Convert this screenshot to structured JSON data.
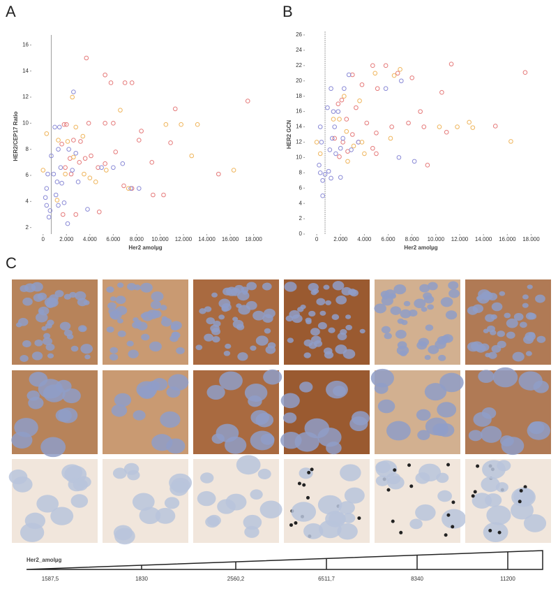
{
  "chart_data": [
    {
      "type": "scatter",
      "panel": "A",
      "x_label": "Her2 amolµg",
      "y_label": "HER2/CEP17 Ratio",
      "xlim": [
        -1000,
        18500
      ],
      "ylim": [
        1.5,
        16.5
      ],
      "xticks": [
        0,
        {
          "value": 2000,
          "label": "2.000"
        },
        {
          "value": 4000,
          "label": "4.000"
        },
        {
          "value": 6000,
          "label": "6.000"
        },
        {
          "value": 8000,
          "label": "8.000"
        },
        {
          "value": 10000,
          "label": "10.000"
        },
        {
          "value": 12000,
          "label": "12.000"
        },
        {
          "value": 14000,
          "label": "14.000"
        },
        {
          "value": 16000,
          "label": "16.000"
        },
        {
          "value": 18000,
          "label": "18.000"
        }
      ],
      "yticks": [
        2,
        4,
        6,
        8,
        10,
        12,
        14,
        16
      ],
      "ref_line_x": 700,
      "series": [
        {
          "color": "#e57a7a",
          "x": [
            3700,
            5300,
            5800,
            7000,
            7600,
            11300,
            17500,
            2000,
            1800,
            3900,
            5300,
            6000,
            8400,
            2600,
            3200,
            1600,
            4100,
            3600,
            2300,
            9300,
            1900,
            5300,
            4700,
            2400,
            8200,
            3100,
            6200,
            15000,
            10900,
            9400,
            10300,
            4800,
            1700,
            2800,
            7600,
            6900
          ],
          "values": [
            15,
            13.7,
            13.1,
            13.1,
            13.1,
            11.1,
            11.7,
            9.9,
            9.9,
            10,
            10,
            10,
            9.4,
            8.7,
            8.6,
            8.4,
            7.5,
            7.3,
            7.3,
            7,
            6.6,
            6.9,
            6.6,
            6.1,
            8.7,
            7,
            7.8,
            6.1,
            8.5,
            4.5,
            4.5,
            3.2,
            3,
            3,
            5,
            5.2
          ]
        },
        {
          "color": "#8a8ad6",
          "x": [
            300,
            400,
            200,
            300,
            500,
            600,
            1000,
            1400,
            2600,
            2200,
            1300,
            700,
            900,
            1500,
            2500,
            3000,
            1100,
            1300,
            1800,
            2100,
            1600,
            3800,
            5000,
            6000,
            6800,
            7500,
            8200,
            2800,
            1200
          ],
          "values": [
            5,
            6.1,
            4.3,
            3.7,
            2.8,
            3.3,
            9.7,
            9.7,
            12.4,
            8,
            8,
            7.5,
            6.1,
            6.6,
            6.4,
            5.5,
            4.5,
            3.7,
            3.9,
            2.3,
            5.4,
            3.4,
            6.6,
            6.6,
            6.9,
            5,
            5,
            7.7,
            5.5
          ]
        },
        {
          "color": "#efb55c",
          "x": [
            0,
            300,
            1300,
            2500,
            2800,
            3400,
            6600,
            10500,
            11800,
            13200,
            12700,
            16300,
            1900,
            2600,
            3500,
            4000,
            4500,
            7300,
            1200,
            2100,
            5400
          ],
          "values": [
            6.4,
            9.2,
            8.7,
            12,
            9.7,
            9,
            11,
            9.9,
            9.9,
            9.9,
            7.5,
            6.4,
            6.1,
            7.4,
            6.1,
            5.8,
            5.5,
            5,
            4.1,
            8.6,
            6.4
          ]
        }
      ]
    },
    {
      "type": "scatter",
      "panel": "B",
      "x_label": "Her2 amolµg",
      "y_label": "HER2 GCN",
      "xlim": [
        -1000,
        18500
      ],
      "ylim": [
        0,
        26
      ],
      "xticks": [
        0,
        {
          "value": 2000,
          "label": "2.000"
        },
        {
          "value": 4000,
          "label": "4.000"
        },
        {
          "value": 6000,
          "label": "6.000"
        },
        {
          "value": 8000,
          "label": "8.000"
        },
        {
          "value": 10000,
          "label": "10.000"
        },
        {
          "value": 12000,
          "label": "12.000"
        },
        {
          "value": 14000,
          "label": "14.000"
        },
        {
          "value": 16000,
          "label": "16.000"
        },
        {
          "value": 18000,
          "label": "18.000"
        }
      ],
      "yticks": [
        0,
        2,
        4,
        6,
        8,
        10,
        12,
        14,
        16,
        18,
        20,
        22,
        24,
        26
      ],
      "ref_line_x": 700,
      "series": [
        {
          "color": "#e57a7a",
          "x": [
            3800,
            4700,
            5800,
            6800,
            8000,
            11300,
            17500,
            5100,
            3000,
            2100,
            1800,
            3300,
            4200,
            2500,
            3000,
            1500,
            2200,
            5000,
            6300,
            9000,
            10900,
            15000,
            8700,
            2600,
            5000,
            3500,
            9300,
            4700,
            1900,
            10500,
            7700
          ],
          "values": [
            19.5,
            22,
            22,
            21,
            20.4,
            22.2,
            21.1,
            19,
            20.8,
            17.5,
            17,
            16.5,
            14.5,
            15,
            13,
            12.5,
            12,
            13.2,
            14,
            14,
            13.3,
            14.1,
            16,
            10.8,
            10.5,
            12,
            9,
            11.2,
            10.1,
            18.5,
            14.5
          ]
        },
        {
          "color": "#8a8ad6",
          "x": [
            300,
            400,
            200,
            300,
            500,
            500,
            900,
            1200,
            1400,
            1800,
            2700,
            2300,
            1100,
            1300,
            1600,
            2200,
            2900,
            3500,
            1000,
            700,
            1200,
            2000,
            6900,
            8200,
            5800,
            7100,
            2000,
            1500
          ],
          "values": [
            14,
            12,
            9,
            8,
            7,
            5,
            16.5,
            19,
            16,
            16,
            20.8,
            19,
            11,
            12.5,
            10.5,
            12.5,
            11,
            12,
            8.2,
            7.8,
            7.3,
            7.4,
            10,
            9.5,
            19,
            20,
            11.2,
            14
          ]
        },
        {
          "color": "#efb55c",
          "x": [
            0,
            300,
            1400,
            2500,
            3100,
            3800,
            7000,
            6500,
            4900,
            10300,
            11800,
            13100,
            12800,
            16300,
            2600,
            4000,
            1900,
            2300,
            6200,
            3600
          ],
          "values": [
            12,
            10.5,
            15,
            13.4,
            11.5,
            12,
            21.5,
            20.7,
            21,
            14,
            14,
            13.9,
            14.6,
            12.1,
            9.5,
            10.5,
            15,
            18,
            12.5,
            17.4
          ]
        }
      ]
    }
  ],
  "panel_c": {
    "label": "C",
    "scale": {
      "title": "Her2_amolµg",
      "ticks": [
        "1587,5",
        "1830",
        "2560,2",
        "6511,7",
        "8340",
        "11200"
      ]
    }
  }
}
